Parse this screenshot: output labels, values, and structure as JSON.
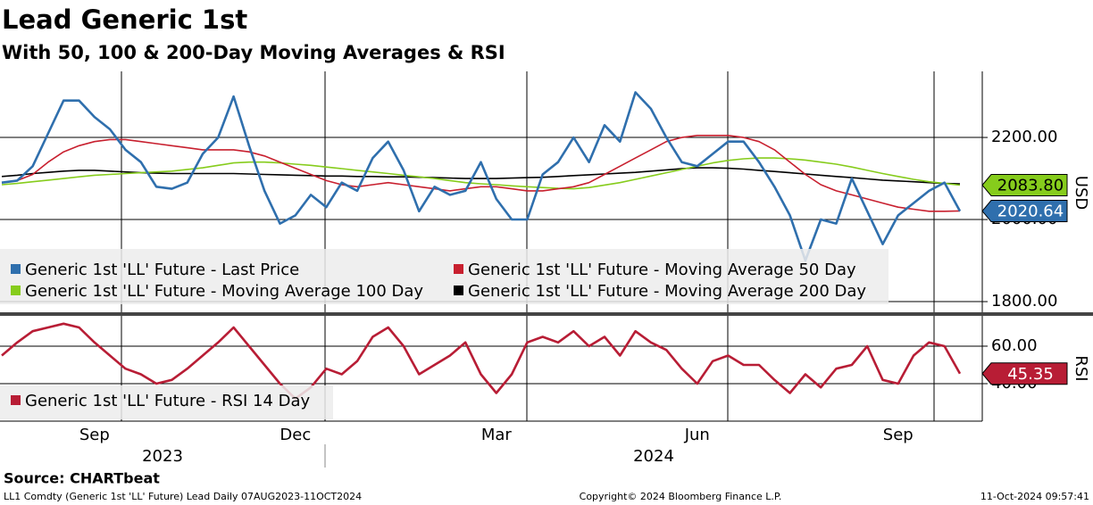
{
  "chart_data": [
    {
      "type": "line",
      "title": "Lead Generic 1st",
      "subtitle": "With 50, 100 & 200-Day Moving Averages & RSI",
      "y_label": "USD",
      "ylim": [
        1774,
        2361
      ],
      "yticks": [
        {
          "value": 1800,
          "label": "1800.00"
        },
        {
          "value": 2000,
          "label": "2000.00"
        },
        {
          "value": 2200,
          "label": "2200.00"
        }
      ],
      "grid": true,
      "series": [
        {
          "name": "Generic 1st 'LL' Future - Last Price",
          "color": "#2f6fad",
          "values": [
            2090,
            2095,
            2130,
            2210,
            2290,
            2290,
            2250,
            2220,
            2170,
            2140,
            2080,
            2075,
            2090,
            2160,
            2200,
            2300,
            2180,
            2070,
            1990,
            2010,
            2060,
            2030,
            2090,
            2070,
            2150,
            2190,
            2120,
            2020,
            2080,
            2060,
            2070,
            2140,
            2050,
            2000,
            2000,
            2110,
            2140,
            2200,
            2140,
            2230,
            2190,
            2310,
            2270,
            2200,
            2140,
            2130,
            2160,
            2190,
            2190,
            2140,
            2080,
            2010,
            1900,
            2000,
            1990,
            2100,
            2020,
            1940,
            2010,
            2040,
            2070,
            2090,
            2020.64
          ],
          "value_labels": [
            null,
            null,
            null,
            null,
            null,
            null,
            null,
            null,
            null,
            null,
            null,
            null,
            null,
            null,
            null,
            null,
            null,
            null,
            null,
            null,
            null,
            null,
            null,
            null,
            null,
            null,
            null,
            null,
            null,
            null,
            null,
            null,
            null,
            null,
            null,
            null,
            null,
            null,
            null,
            null,
            null,
            null,
            null,
            null,
            null,
            null,
            null,
            null,
            null,
            null,
            null,
            null,
            null,
            null,
            null,
            null,
            null,
            null,
            null,
            null,
            null,
            null,
            "2020.64"
          ]
        },
        {
          "name": "Generic 1st 'LL' Future - Moving Average 50 Day",
          "color": "#c8202f",
          "values": [
            2090,
            2095,
            2110,
            2140,
            2165,
            2180,
            2190,
            2195,
            2195,
            2190,
            2185,
            2180,
            2175,
            2170,
            2170,
            2170,
            2165,
            2155,
            2140,
            2125,
            2110,
            2095,
            2085,
            2080,
            2085,
            2090,
            2085,
            2080,
            2075,
            2070,
            2075,
            2080,
            2080,
            2075,
            2070,
            2070,
            2075,
            2080,
            2090,
            2110,
            2130,
            2150,
            2170,
            2190,
            2200,
            2205,
            2205,
            2205,
            2200,
            2190,
            2170,
            2140,
            2110,
            2085,
            2070,
            2060,
            2050,
            2040,
            2030,
            2025,
            2020,
            2020,
            2021
          ]
        },
        {
          "name": "Generic 1st 'LL' Future - Moving Average 100 Day",
          "color": "#86cc1c",
          "values": [
            2085,
            2088,
            2092,
            2096,
            2100,
            2104,
            2108,
            2110,
            2112,
            2114,
            2116,
            2118,
            2122,
            2126,
            2132,
            2138,
            2140,
            2140,
            2138,
            2135,
            2132,
            2128,
            2124,
            2120,
            2116,
            2112,
            2108,
            2104,
            2100,
            2095,
            2090,
            2087,
            2085,
            2082,
            2080,
            2078,
            2076,
            2075,
            2078,
            2084,
            2090,
            2098,
            2106,
            2114,
            2122,
            2130,
            2138,
            2144,
            2148,
            2150,
            2150,
            2148,
            2145,
            2140,
            2135,
            2128,
            2120,
            2112,
            2105,
            2098,
            2092,
            2088,
            2083.8
          ],
          "value_labels": [
            null,
            null,
            null,
            null,
            null,
            null,
            null,
            null,
            null,
            null,
            null,
            null,
            null,
            null,
            null,
            null,
            null,
            null,
            null,
            null,
            null,
            null,
            null,
            null,
            null,
            null,
            null,
            null,
            null,
            null,
            null,
            null,
            null,
            null,
            null,
            null,
            null,
            null,
            null,
            null,
            null,
            null,
            null,
            null,
            null,
            null,
            null,
            null,
            null,
            null,
            null,
            null,
            null,
            null,
            null,
            null,
            null,
            null,
            null,
            null,
            null,
            null,
            "2083.80"
          ]
        },
        {
          "name": "Generic 1st 'LL' Future - Moving Average 200 Day",
          "color": "#000000",
          "values": [
            2105,
            2108,
            2112,
            2115,
            2118,
            2120,
            2120,
            2118,
            2116,
            2114,
            2113,
            2112,
            2112,
            2112,
            2112,
            2112,
            2111,
            2110,
            2109,
            2108,
            2107,
            2106,
            2106,
            2105,
            2105,
            2104,
            2104,
            2103,
            2102,
            2101,
            2100,
            2100,
            2100,
            2101,
            2102,
            2103,
            2105,
            2107,
            2109,
            2111,
            2113,
            2115,
            2118,
            2121,
            2124,
            2126,
            2126,
            2125,
            2123,
            2120,
            2117,
            2114,
            2111,
            2108,
            2105,
            2102,
            2099,
            2096,
            2094,
            2092,
            2090,
            2088,
            2087
          ]
        }
      ]
    },
    {
      "type": "line",
      "y_label": "RSI",
      "categories": [
        null,
        null,
        null,
        null,
        null,
        null,
        "Sep",
        null,
        null,
        null,
        null,
        null,
        null,
        null,
        null,
        null,
        null,
        null,
        null,
        "Dec",
        null,
        null,
        null,
        null,
        null,
        null,
        null,
        null,
        null,
        null,
        null,
        null,
        "Mar",
        null,
        null,
        null,
        null,
        null,
        null,
        null,
        null,
        null,
        null,
        null,
        null,
        "Jun",
        null,
        null,
        null,
        null,
        null,
        null,
        null,
        null,
        null,
        null,
        null,
        null,
        "Sep",
        null,
        null,
        null,
        null
      ],
      "years": [
        "2023",
        "2024"
      ],
      "ylim": [
        20,
        75.7
      ],
      "yticks": [
        {
          "value": 40,
          "label": "40.00"
        },
        {
          "value": 60,
          "label": "60.00"
        }
      ],
      "grid": true,
      "series": [
        {
          "name": "Generic 1st 'LL' Future - RSI 14 Day",
          "color": "#b81d35",
          "values": [
            55,
            62,
            68,
            70,
            72,
            70,
            62,
            55,
            48,
            45,
            40,
            42,
            48,
            55,
            62,
            70,
            60,
            50,
            40,
            32,
            38,
            48,
            45,
            52,
            65,
            70,
            60,
            45,
            50,
            55,
            62,
            45,
            35,
            45,
            62,
            65,
            62,
            68,
            60,
            65,
            55,
            68,
            62,
            58,
            48,
            40,
            52,
            55,
            50,
            50,
            42,
            35,
            45,
            38,
            48,
            50,
            60,
            42,
            40,
            55,
            62,
            60,
            45.35
          ],
          "value_labels": [
            null,
            null,
            null,
            null,
            null,
            null,
            null,
            null,
            null,
            null,
            null,
            null,
            null,
            null,
            null,
            null,
            null,
            null,
            null,
            null,
            null,
            null,
            null,
            null,
            null,
            null,
            null,
            null,
            null,
            null,
            null,
            null,
            null,
            null,
            null,
            null,
            null,
            null,
            null,
            null,
            null,
            null,
            null,
            null,
            null,
            null,
            null,
            null,
            null,
            null,
            null,
            null,
            null,
            null,
            null,
            null,
            null,
            null,
            null,
            null,
            null,
            null,
            "45.35"
          ]
        }
      ]
    }
  ],
  "source": "Source: CHARTbeat",
  "footer_left": "LL1 Comdty (Generic 1st 'LL' Future) Lead  Daily 07AUG2023-11OCT2024",
  "copyright": "Copyright© 2024 Bloomberg Finance L.P.",
  "timestamp": "11-Oct-2024 09:57:41"
}
